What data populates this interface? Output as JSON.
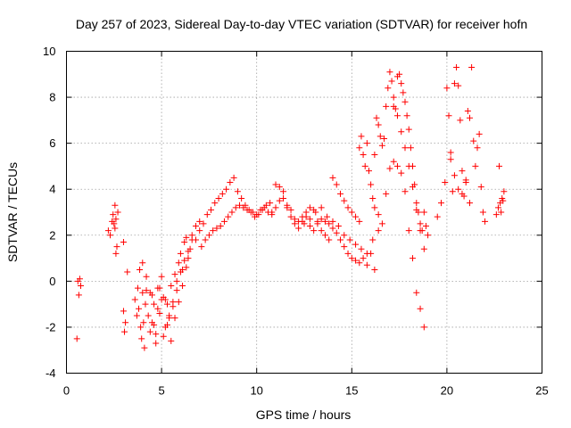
{
  "chart_data": {
    "type": "scatter",
    "title": "Day 257 of 2023, Sidereal Day-to-day VTEC variation (SDTVAR) for receiver hofn",
    "xlabel": "GPS time / hours",
    "ylabel": "SDTVAR / TECUs",
    "xlim": [
      0,
      25
    ],
    "ylim": [
      -4,
      10
    ],
    "xticks": [
      "0",
      "5",
      "10",
      "15",
      "20",
      "25"
    ],
    "yticks": [
      "-4",
      "-2",
      "0",
      "2",
      "4",
      "6",
      "8",
      "10"
    ],
    "grid": true,
    "marker": "+",
    "color": "#ff0000",
    "series": [
      {
        "name": "SDTVAR",
        "x": [
          0.55,
          0.6,
          0.65,
          0.7,
          0.75,
          2.2,
          2.3,
          2.4,
          2.45,
          2.5,
          2.55,
          2.6,
          2.65,
          2.7,
          2.6,
          2.55,
          3.0,
          3.1,
          3.05,
          3.0,
          3.2,
          3.6,
          3.7,
          3.75,
          3.8,
          3.85,
          3.9,
          3.95,
          4.0,
          4.05,
          4.1,
          4.15,
          4.2,
          4.3,
          4.4,
          4.5,
          4.6,
          4.7,
          4.8,
          4.9,
          5.0,
          5.1,
          5.2,
          5.3,
          5.4,
          5.5,
          5.6,
          5.7,
          5.8,
          5.9,
          6.0,
          6.1,
          6.2,
          6.3,
          6.4,
          6.5,
          6.6,
          6.8,
          7.0,
          4.0,
          4.2,
          4.4,
          4.6,
          4.8,
          5.0,
          5.2,
          5.4,
          5.6,
          5.8,
          6.0,
          6.2,
          6.4,
          6.6,
          6.8,
          4.5,
          4.7,
          4.9,
          5.1,
          5.3,
          5.5,
          5.7,
          5.9,
          6.1,
          6.3,
          7.0,
          7.2,
          7.4,
          7.6,
          7.8,
          8.0,
          8.2,
          8.4,
          8.6,
          8.8,
          9.0,
          9.2,
          9.4,
          9.6,
          9.8,
          10.0,
          10.2,
          10.4,
          10.6,
          10.8,
          7.1,
          7.3,
          7.5,
          7.7,
          7.9,
          8.1,
          8.3,
          8.5,
          8.7,
          8.9,
          9.1,
          9.3,
          9.5,
          9.7,
          9.9,
          10.1,
          10.3,
          10.5,
          10.7,
          10.8,
          11.0,
          11.2,
          11.4,
          11.6,
          11.8,
          12.0,
          12.2,
          12.4,
          12.6,
          12.8,
          13.0,
          13.2,
          13.4,
          13.6,
          13.8,
          11.0,
          11.2,
          11.4,
          11.6,
          11.8,
          12.0,
          12.2,
          12.4,
          12.6,
          12.8,
          13.0,
          13.2,
          13.4,
          13.6,
          13.8,
          14.0,
          14.2,
          14.4,
          14.6,
          14.8,
          15.0,
          15.2,
          15.4,
          15.6,
          15.8,
          16.0,
          16.2,
          12.5,
          12.8,
          13.1,
          13.4,
          13.7,
          14.0,
          14.3,
          14.6,
          14.9,
          15.2,
          15.5,
          15.8,
          16.1,
          16.4,
          14.0,
          14.2,
          14.4,
          14.6,
          14.8,
          15.0,
          15.2,
          15.4,
          15.4,
          15.5,
          15.6,
          15.7,
          15.8,
          15.9,
          16.0,
          16.1,
          16.2,
          16.3,
          16.4,
          16.5,
          16.6,
          16.7,
          16.8,
          16.9,
          17.0,
          17.1,
          17.2,
          17.3,
          17.4,
          17.5,
          17.6,
          17.7,
          17.8,
          17.9,
          18.0,
          18.1,
          18.2,
          18.3,
          18.4,
          18.5,
          18.6,
          18.7,
          18.8,
          18.9,
          19.0,
          16.2,
          16.4,
          16.6,
          16.8,
          17.0,
          17.2,
          17.4,
          17.6,
          17.8,
          18.0,
          18.2,
          18.4,
          18.6,
          18.8,
          17.2,
          17.4,
          17.6,
          17.8,
          18.0,
          18.2,
          18.4,
          18.6,
          18.8,
          19.5,
          19.7,
          19.9,
          20.0,
          20.1,
          20.2,
          20.3,
          20.4,
          20.5,
          20.6,
          20.7,
          20.8,
          20.9,
          21.0,
          21.1,
          21.2,
          21.3,
          21.4,
          21.5,
          21.6,
          21.7,
          21.8,
          21.9,
          22.0,
          20.2,
          20.4,
          20.6,
          20.8,
          21.0,
          21.2,
          22.6,
          22.7,
          22.8,
          22.9,
          23.0,
          22.75,
          22.85,
          22.95
        ],
        "y": [
          -2.5,
          0.0,
          -0.6,
          0.1,
          -0.2,
          2.2,
          2.0,
          2.6,
          2.9,
          2.5,
          3.3,
          1.2,
          1.5,
          3.0,
          2.7,
          2.3,
          -1.3,
          -1.8,
          -2.2,
          1.7,
          0.4,
          -0.8,
          -1.5,
          -0.3,
          -1.2,
          0.5,
          -2.0,
          -2.5,
          -0.5,
          -1.8,
          -2.9,
          -1.0,
          -0.4,
          -1.5,
          -2.2,
          -0.6,
          -1.9,
          -2.7,
          -1.2,
          -0.3,
          -0.8,
          -2.4,
          -2.0,
          -1.0,
          -1.6,
          -0.2,
          -0.9,
          0.3,
          0.0,
          0.8,
          1.2,
          0.5,
          1.7,
          1.9,
          1.0,
          1.4,
          2.0,
          1.8,
          2.6,
          0.8,
          0.2,
          -0.5,
          -1.0,
          -0.3,
          0.2,
          -0.8,
          -1.5,
          -1.1,
          -0.4,
          0.4,
          0.9,
          1.3,
          1.8,
          2.4,
          -1.8,
          -2.3,
          -1.4,
          -0.7,
          -1.9,
          -2.6,
          -1.6,
          -0.9,
          -0.2,
          0.6,
          2.2,
          2.5,
          2.9,
          3.1,
          3.4,
          3.6,
          3.8,
          4.0,
          4.3,
          4.5,
          3.9,
          3.6,
          3.3,
          3.1,
          3.0,
          2.9,
          3.1,
          3.2,
          3.0,
          2.9,
          1.5,
          1.8,
          2.0,
          2.2,
          2.3,
          2.4,
          2.6,
          2.8,
          3.0,
          3.2,
          3.3,
          3.2,
          3.1,
          3.0,
          2.8,
          2.9,
          3.1,
          3.3,
          3.4,
          3.0,
          3.2,
          3.5,
          3.6,
          3.3,
          3.1,
          2.7,
          2.6,
          2.8,
          3.0,
          3.2,
          3.1,
          2.6,
          2.2,
          2.0,
          1.8,
          4.2,
          4.1,
          3.9,
          3.2,
          2.8,
          2.5,
          2.3,
          2.6,
          2.8,
          2.4,
          2.2,
          2.5,
          2.7,
          2.6,
          2.5,
          2.3,
          2.1,
          1.8,
          1.5,
          1.2,
          1.0,
          0.9,
          0.8,
          1.0,
          0.7,
          1.2,
          0.5,
          2.5,
          2.7,
          3.0,
          3.2,
          2.8,
          2.6,
          2.4,
          2.0,
          1.8,
          1.6,
          1.4,
          1.2,
          1.8,
          2.2,
          4.5,
          4.2,
          3.8,
          3.5,
          3.2,
          3.0,
          2.8,
          2.6,
          5.8,
          6.3,
          5.5,
          5.0,
          6.0,
          4.8,
          4.2,
          3.6,
          5.5,
          7.1,
          6.8,
          6.3,
          5.9,
          6.2,
          7.6,
          8.4,
          9.1,
          8.7,
          8.0,
          7.5,
          8.9,
          9.0,
          8.6,
          8.2,
          7.8,
          7.2,
          6.6,
          5.8,
          5.0,
          4.2,
          3.4,
          3.0,
          2.5,
          2.2,
          3.0,
          2.4,
          2.0,
          3.2,
          2.9,
          2.5,
          3.8,
          4.9,
          5.2,
          5.0,
          4.7,
          3.9,
          2.2,
          1.0,
          -0.5,
          -1.2,
          -2.0,
          7.6,
          7.2,
          6.5,
          5.8,
          5.0,
          4.1,
          3.1,
          2.2,
          1.4,
          2.8,
          3.4,
          4.3,
          8.4,
          7.2,
          5.3,
          3.9,
          8.6,
          9.3,
          8.5,
          7.0,
          4.8,
          3.7,
          4.4,
          7.4,
          7.1,
          9.3,
          6.1,
          5.0,
          5.8,
          6.4,
          4.1,
          3.0,
          2.6,
          5.6,
          4.6,
          4.0,
          3.8,
          4.3,
          3.4,
          2.9,
          3.2,
          3.4,
          3.6,
          3.9,
          5.0,
          3.0,
          3.5
        ]
      }
    ]
  }
}
